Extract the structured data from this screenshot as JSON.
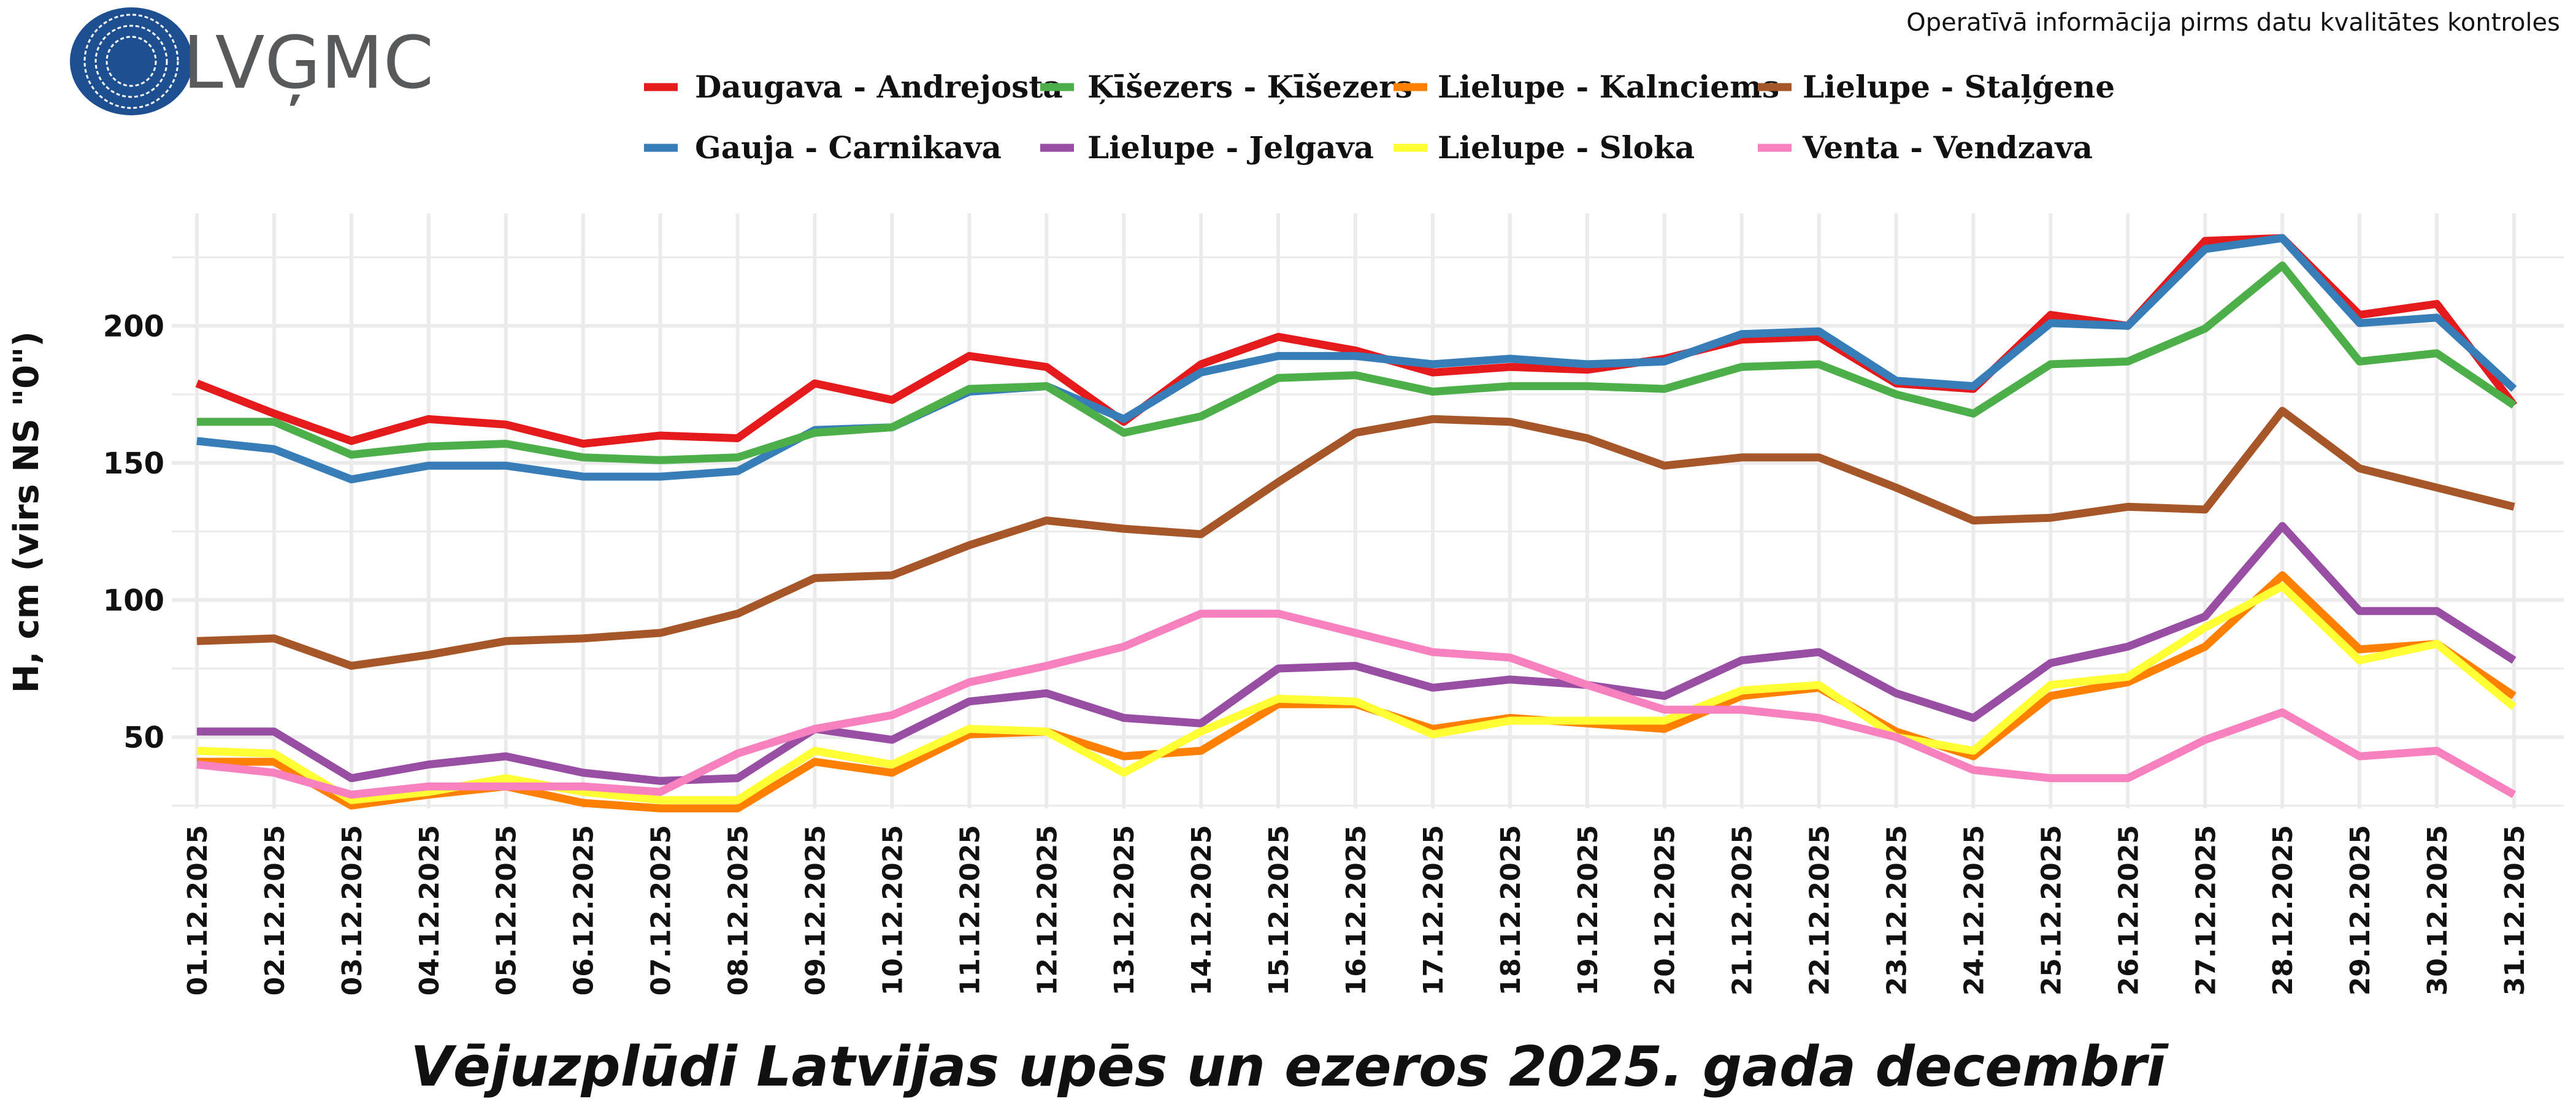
{
  "header": {
    "logo_text": "LVĢMC",
    "note": "Operatīvā informācija pirms datu kvalitātes kontroles"
  },
  "chart_data": {
    "type": "line",
    "title": "Vējuzplūdi Latvijas upēs un ezeros 2025. gada decembrī",
    "xlabel": "",
    "ylabel": "H, cm (virs NS \"0\")",
    "ylim": [
      24,
      241
    ],
    "yticks": [
      50,
      100,
      150,
      200
    ],
    "grid": true,
    "legend_position": "top",
    "categories": [
      "01.12.2025",
      "02.12.2025",
      "03.12.2025",
      "04.12.2025",
      "05.12.2025",
      "06.12.2025",
      "07.12.2025",
      "08.12.2025",
      "09.12.2025",
      "10.12.2025",
      "11.12.2025",
      "12.12.2025",
      "13.12.2025",
      "14.12.2025",
      "15.12.2025",
      "16.12.2025",
      "17.12.2025",
      "18.12.2025",
      "19.12.2025",
      "20.12.2025",
      "21.12.2025",
      "22.12.2025",
      "23.12.2025",
      "24.12.2025",
      "25.12.2025",
      "26.12.2025",
      "27.12.2025",
      "28.12.2025",
      "29.12.2025",
      "30.12.2025",
      "31.12.2025"
    ],
    "series": [
      {
        "name": "Daugava - Andrejosta",
        "color": "#e41a1c",
        "values": [
          179,
          168,
          158,
          166,
          164,
          157,
          160,
          159,
          179,
          173,
          189,
          185,
          165,
          186,
          196,
          191,
          183,
          185,
          184,
          188,
          195,
          196,
          179,
          177,
          204,
          200,
          231,
          232,
          204,
          208,
          171
        ]
      },
      {
        "name": "Gauja - Carnikava",
        "color": "#377eb8",
        "values": [
          158,
          155,
          144,
          149,
          149,
          145,
          145,
          147,
          162,
          163,
          176,
          178,
          166,
          183,
          189,
          189,
          186,
          188,
          186,
          187,
          197,
          198,
          180,
          178,
          201,
          200,
          228,
          232,
          201,
          203,
          177
        ]
      },
      {
        "name": "Ķīšezers - Ķīšezers",
        "color": "#4daf4a",
        "values": [
          165,
          165,
          153,
          156,
          157,
          152,
          151,
          152,
          161,
          163,
          177,
          178,
          161,
          167,
          181,
          182,
          176,
          178,
          178,
          177,
          185,
          186,
          175,
          168,
          186,
          187,
          199,
          222,
          187,
          190,
          171
        ]
      },
      {
        "name": "Lielupe - Jelgava",
        "color": "#984ea3",
        "values": [
          52,
          52,
          35,
          40,
          43,
          37,
          34,
          35,
          53,
          49,
          63,
          66,
          57,
          55,
          75,
          76,
          68,
          71,
          69,
          65,
          78,
          81,
          66,
          57,
          77,
          83,
          94,
          127,
          96,
          96,
          78
        ]
      },
      {
        "name": "Lielupe - Kalnciems",
        "color": "#ff7f00",
        "values": [
          41,
          41,
          25,
          29,
          32,
          26,
          24,
          24,
          41,
          37,
          51,
          52,
          43,
          45,
          62,
          62,
          53,
          57,
          55,
          53,
          65,
          68,
          52,
          43,
          65,
          70,
          83,
          109,
          82,
          84,
          65
        ]
      },
      {
        "name": "Lielupe - Sloka",
        "color": "#ffff33",
        "values": [
          45,
          44,
          27,
          30,
          35,
          30,
          27,
          27,
          45,
          40,
          53,
          52,
          37,
          52,
          64,
          63,
          51,
          56,
          56,
          56,
          67,
          69,
          50,
          45,
          69,
          72,
          90,
          105,
          78,
          84,
          61
        ]
      },
      {
        "name": "Lielupe - Staļģene",
        "color": "#a65628",
        "values": [
          85,
          86,
          76,
          80,
          85,
          86,
          88,
          95,
          108,
          109,
          120,
          129,
          126,
          124,
          143,
          161,
          166,
          165,
          159,
          149,
          152,
          152,
          141,
          129,
          130,
          134,
          133,
          169,
          148,
          141,
          134
        ]
      },
      {
        "name": "Venta - Vendzava",
        "color": "#f781bf",
        "values": [
          40,
          37,
          29,
          32,
          32,
          32,
          30,
          44,
          53,
          58,
          70,
          76,
          83,
          95,
          95,
          88,
          81,
          79,
          69,
          60,
          60,
          57,
          50,
          38,
          35,
          35,
          49,
          59,
          43,
          45,
          29
        ]
      }
    ],
    "legend_order": [
      0,
      2,
      4,
      6,
      1,
      3,
      5,
      7
    ]
  }
}
